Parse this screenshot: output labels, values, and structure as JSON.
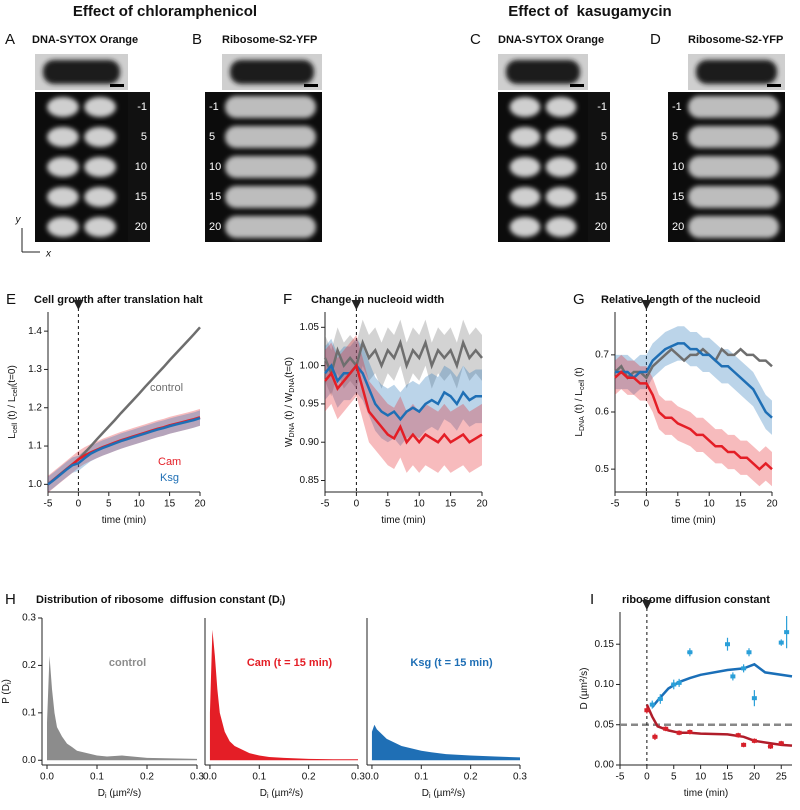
{
  "figure": {
    "headings": [
      "Effect of chloramphenicol",
      "Effect of  kasugamycin"
    ],
    "panels": [
      {
        "label": "A",
        "title": "DNA-SYTOX Orange",
        "times": [
          "-1",
          "5",
          "10",
          "15",
          "20"
        ]
      },
      {
        "label": "B",
        "title": "Ribosome-S2-YFP",
        "times": [
          "-1",
          "5",
          "10",
          "15",
          "20"
        ]
      },
      {
        "label": "C",
        "title": "DNA-SYTOX Orange",
        "times": [
          "-1",
          "5",
          "10",
          "15",
          "20"
        ]
      },
      {
        "label": "D",
        "title": "Ribosome-S2-YFP",
        "times": [
          "-1",
          "5",
          "10",
          "15",
          "20"
        ]
      }
    ],
    "axes_hint": [
      "y",
      "x"
    ],
    "h_label": "H",
    "h_title": [
      "Distribution of ribosome  diffusion constant (D",
      "i",
      ")"
    ]
  },
  "chart_data": [
    {
      "type": "line",
      "label": "E",
      "title": "Cell growth after translation halt",
      "xlabel": [
        "time (min)"
      ],
      "ylabel": [
        "L",
        "cell",
        " (t) / L",
        "cell",
        "(t=0)"
      ],
      "xlim": [
        -5,
        20
      ],
      "xticks": [
        -5,
        0,
        5,
        10,
        15,
        20
      ],
      "ylim": [
        0.98,
        1.45
      ],
      "yticks": [
        {
          "value": 1,
          "label": "1.0"
        },
        1.1,
        1.2,
        1.3,
        1.4
      ],
      "vline": 0,
      "x": [
        -5,
        -4,
        -3,
        -2,
        -1,
        0,
        1,
        2,
        3,
        4,
        5,
        6,
        7,
        8,
        9,
        10,
        11,
        12,
        13,
        14,
        15,
        16,
        17,
        18,
        19,
        20
      ],
      "series": [
        {
          "name": "control",
          "color": "#6e6e6e",
          "values": [
            1.0,
            1.013,
            1.026,
            1.039,
            1.052,
            1.065,
            1.082,
            1.099,
            1.117,
            1.134,
            1.151,
            1.168,
            1.186,
            1.203,
            1.22,
            1.237,
            1.255,
            1.272,
            1.289,
            1.306,
            1.324,
            1.341,
            1.358,
            1.375,
            1.392,
            1.41
          ]
        },
        {
          "name": "Cam",
          "color": "#e41e26",
          "band": 0.022,
          "values": [
            1.0,
            1.013,
            1.026,
            1.039,
            1.052,
            1.065,
            1.075,
            1.083,
            1.09,
            1.097,
            1.103,
            1.109,
            1.115,
            1.12,
            1.125,
            1.13,
            1.135,
            1.14,
            1.145,
            1.149,
            1.154,
            1.158,
            1.162,
            1.166,
            1.17,
            1.175
          ]
        },
        {
          "name": "Ksg",
          "color": "#1f6fb5",
          "band": 0.02,
          "values": [
            1.0,
            1.012,
            1.025,
            1.038,
            1.05,
            1.055,
            1.068,
            1.08,
            1.088,
            1.095,
            1.101,
            1.107,
            1.113,
            1.118,
            1.123,
            1.128,
            1.133,
            1.138,
            1.143,
            1.147,
            1.152,
            1.156,
            1.16,
            1.164,
            1.168,
            1.173
          ]
        }
      ]
    },
    {
      "type": "line",
      "label": "F",
      "title": "Change in nucleoid width",
      "xlabel": [
        "time (min)"
      ],
      "ylabel": [
        "W",
        "DNA",
        " (t) / W",
        "DNA",
        "(t=0)"
      ],
      "xlim": [
        -5,
        20
      ],
      "xticks": [
        -5,
        0,
        5,
        10,
        15,
        20
      ],
      "ylim": [
        0.835,
        1.07
      ],
      "yticks": [
        0.85,
        {
          "value": 0.9,
          "label": "0.90"
        },
        0.95,
        {
          "value": 1,
          "label": "1.00"
        },
        1.05
      ],
      "vline": 0,
      "x": [
        -5,
        -4,
        -3,
        -2,
        -1,
        0,
        1,
        2,
        3,
        4,
        5,
        6,
        7,
        8,
        9,
        10,
        11,
        12,
        13,
        14,
        15,
        16,
        17,
        18,
        19,
        20
      ],
      "series": [
        {
          "color": "#6e6e6e",
          "band": 0.03,
          "values": [
            1.01,
            0.99,
            1.02,
            1.0,
            1.01,
            1.0,
            1.03,
            1.01,
            1.02,
            1.0,
            1.02,
            1.01,
            1.03,
            1.0,
            1.02,
            1.01,
            1.03,
            1.0,
            1.02,
            1.01,
            1.02,
            1.0,
            1.03,
            1.01,
            1.02,
            1.01
          ]
        },
        {
          "color": "#1f6fb5",
          "band": 0.035,
          "values": [
            0.99,
            1.0,
            0.98,
            0.99,
            0.99,
            1.0,
            0.99,
            0.97,
            0.95,
            0.94,
            0.935,
            0.94,
            0.93,
            0.94,
            0.945,
            0.94,
            0.95,
            0.955,
            0.95,
            0.965,
            0.96,
            0.95,
            0.965,
            0.955,
            0.96,
            0.96
          ]
        },
        {
          "color": "#e41e26",
          "band": 0.04,
          "values": [
            0.98,
            0.99,
            0.97,
            0.98,
            0.99,
            1.0,
            0.97,
            0.94,
            0.93,
            0.92,
            0.91,
            0.905,
            0.92,
            0.9,
            0.91,
            0.9,
            0.91,
            0.905,
            0.9,
            0.91,
            0.9,
            0.905,
            0.91,
            0.9,
            0.905,
            0.91
          ]
        }
      ]
    },
    {
      "type": "line",
      "label": "G",
      "title": "Relative length of the nucleoid",
      "xlabel": [
        "time (min)"
      ],
      "ylabel": [
        "L",
        "DNA",
        " (t) / L",
        "cell",
        " (t)"
      ],
      "xlim": [
        -5,
        20
      ],
      "xticks": [
        -5,
        0,
        5,
        10,
        15,
        20
      ],
      "ylim": [
        0.46,
        0.775
      ],
      "yticks": [
        0.5,
        0.6,
        0.7
      ],
      "vline": 0,
      "x": [
        -5,
        -4,
        -3,
        -2,
        -1,
        0,
        1,
        2,
        3,
        4,
        5,
        6,
        7,
        8,
        9,
        10,
        11,
        12,
        13,
        14,
        15,
        16,
        17,
        18,
        19,
        20
      ],
      "series": [
        {
          "color": "#6e6e6e",
          "values": [
            0.67,
            0.68,
            0.66,
            0.67,
            0.67,
            0.66,
            0.68,
            0.69,
            0.7,
            0.71,
            0.7,
            0.69,
            0.7,
            0.7,
            0.71,
            0.7,
            0.69,
            0.71,
            0.7,
            0.7,
            0.71,
            0.7,
            0.7,
            0.69,
            0.69,
            0.68
          ]
        },
        {
          "color": "#1f6fb5",
          "band": 0.03,
          "values": [
            0.67,
            0.67,
            0.67,
            0.66,
            0.67,
            0.67,
            0.69,
            0.7,
            0.71,
            0.715,
            0.72,
            0.72,
            0.71,
            0.71,
            0.7,
            0.7,
            0.69,
            0.68,
            0.68,
            0.67,
            0.66,
            0.65,
            0.64,
            0.62,
            0.6,
            0.59
          ]
        },
        {
          "color": "#e41e26",
          "band": 0.03,
          "values": [
            0.66,
            0.67,
            0.66,
            0.66,
            0.65,
            0.65,
            0.63,
            0.6,
            0.59,
            0.59,
            0.58,
            0.575,
            0.57,
            0.56,
            0.56,
            0.55,
            0.54,
            0.54,
            0.53,
            0.53,
            0.52,
            0.52,
            0.51,
            0.5,
            0.51,
            0.5
          ]
        }
      ]
    },
    {
      "type": "area",
      "xlabel": [
        "D",
        "i",
        " (µm²/s)"
      ],
      "ylabel": [
        "P (D",
        "i",
        ")"
      ],
      "xlim": [
        -0.01,
        0.3
      ],
      "xticks": [
        {
          "value": 0,
          "label": "0.0"
        },
        0.1,
        0.2,
        0.3
      ],
      "ylim": [
        -0.01,
        0.3
      ],
      "yticks": [
        {
          "value": 0,
          "label": "0.0"
        },
        0.1,
        0.2,
        0.3
      ],
      "x": [
        0,
        0.005,
        0.01,
        0.015,
        0.02,
        0.03,
        0.04,
        0.05,
        0.06,
        0.08,
        0.1,
        0.12,
        0.15,
        0.2,
        0.25,
        0.3
      ],
      "series": [
        {
          "name": "control",
          "color": "#8c8c8c",
          "values": [
            0.08,
            0.22,
            0.15,
            0.1,
            0.07,
            0.05,
            0.035,
            0.028,
            0.02,
            0.015,
            0.01,
            0.008,
            0.01,
            0.005,
            0.004,
            0.003
          ]
        }
      ]
    },
    {
      "type": "area",
      "xlabel": [
        "D",
        "i",
        " (µm²/s)"
      ],
      "xlim": [
        -0.01,
        0.3
      ],
      "xticks": [
        {
          "value": 0,
          "label": "0.0"
        },
        0.1,
        0.2,
        0.3
      ],
      "ylim": [
        -0.01,
        0.3
      ],
      "x": [
        0,
        0.005,
        0.01,
        0.015,
        0.02,
        0.03,
        0.04,
        0.05,
        0.06,
        0.08,
        0.1,
        0.12,
        0.15,
        0.2,
        0.25,
        0.3
      ],
      "series": [
        {
          "name": "Cam (t = 15 min)",
          "color": "#e41e26",
          "values": [
            0.1,
            0.275,
            0.22,
            0.15,
            0.1,
            0.06,
            0.04,
            0.03,
            0.025,
            0.015,
            0.01,
            0.007,
            0.005,
            0.003,
            0.002,
            0.002
          ]
        }
      ]
    },
    {
      "type": "area",
      "xlabel": [
        "D",
        "i",
        " (µm²/s)"
      ],
      "xlim": [
        -0.01,
        0.3
      ],
      "xticks": [
        {
          "value": 0,
          "label": "0.0"
        },
        0.1,
        0.2,
        0.3
      ],
      "ylim": [
        -0.01,
        0.3
      ],
      "x": [
        0,
        0.005,
        0.01,
        0.015,
        0.02,
        0.03,
        0.04,
        0.05,
        0.06,
        0.08,
        0.1,
        0.12,
        0.15,
        0.2,
        0.25,
        0.3
      ],
      "series": [
        {
          "name": "Ksg (t = 15 min)",
          "color": "#1f6fb5",
          "values": [
            0.06,
            0.075,
            0.065,
            0.06,
            0.055,
            0.045,
            0.04,
            0.035,
            0.03,
            0.025,
            0.02,
            0.017,
            0.013,
            0.01,
            0.008,
            0.006
          ]
        }
      ]
    },
    {
      "type": "scatter",
      "label": "I",
      "title": "ribosome diffusion constant",
      "xlabel": [
        "time (min)"
      ],
      "ylabel": [
        "D (µm²/s)"
      ],
      "xlim": [
        -5,
        27
      ],
      "xticks": [
        -5,
        0,
        5,
        10,
        15,
        20,
        25
      ],
      "ylim": [
        0,
        0.19
      ],
      "yticks": [
        {
          "value": 0,
          "label": "0.00"
        },
        0.05,
        {
          "value": 0.1,
          "label": "0.10"
        },
        0.15
      ],
      "vline": 0,
      "hline": 0.05,
      "series": [
        {
          "color": "#2a9fd8",
          "x": [
            1,
            2.5,
            5,
            6,
            8,
            15,
            16,
            18,
            19,
            20,
            25,
            26
          ],
          "values": [
            0.075,
            0.082,
            0.1,
            0.102,
            0.14,
            0.15,
            0.11,
            0.12,
            0.14,
            0.083,
            0.152,
            0.165
          ],
          "xerr": [
            0.4,
            0.5,
            0.5,
            0.4,
            0.5,
            0.4,
            0.3,
            0.4,
            0.4,
            0.3,
            0.4,
            0.4
          ],
          "yerr": [
            0.005,
            0.006,
            0.006,
            0.005,
            0.005,
            0.008,
            0.005,
            0.005,
            0.005,
            0.01,
            0.004,
            0.02
          ]
        },
        {
          "color": "#d6202a",
          "x": [
            0,
            1.5,
            3.5,
            6,
            8,
            17,
            18,
            20,
            23,
            25
          ],
          "values": [
            0.068,
            0.035,
            0.045,
            0.04,
            0.041,
            0.037,
            0.025,
            0.03,
            0.023,
            0.027
          ],
          "xerr": [
            0.3,
            0.5,
            0.5,
            0.5,
            0.5,
            0.4,
            0.4,
            0.4,
            0.5,
            0.5
          ],
          "yerr": [
            0.004,
            0.004,
            0.003,
            0.003,
            0.003,
            0.003,
            0.003,
            0.003,
            0.003,
            0.003
          ]
        }
      ],
      "lines": [
        {
          "color": "#1a6fb8",
          "x": [
            1,
            2,
            4,
            6,
            8,
            10,
            15,
            18,
            20,
            22,
            27
          ],
          "values": [
            0.072,
            0.08,
            0.095,
            0.103,
            0.108,
            0.112,
            0.118,
            0.12,
            0.125,
            0.115,
            0.11
          ]
        },
        {
          "color": "#b01d2a",
          "x": [
            0,
            1,
            2,
            4,
            6,
            8,
            10,
            15,
            18,
            20,
            25,
            27
          ],
          "values": [
            0.075,
            0.06,
            0.048,
            0.043,
            0.04,
            0.04,
            0.039,
            0.038,
            0.035,
            0.03,
            0.025,
            0.024
          ]
        }
      ]
    }
  ]
}
